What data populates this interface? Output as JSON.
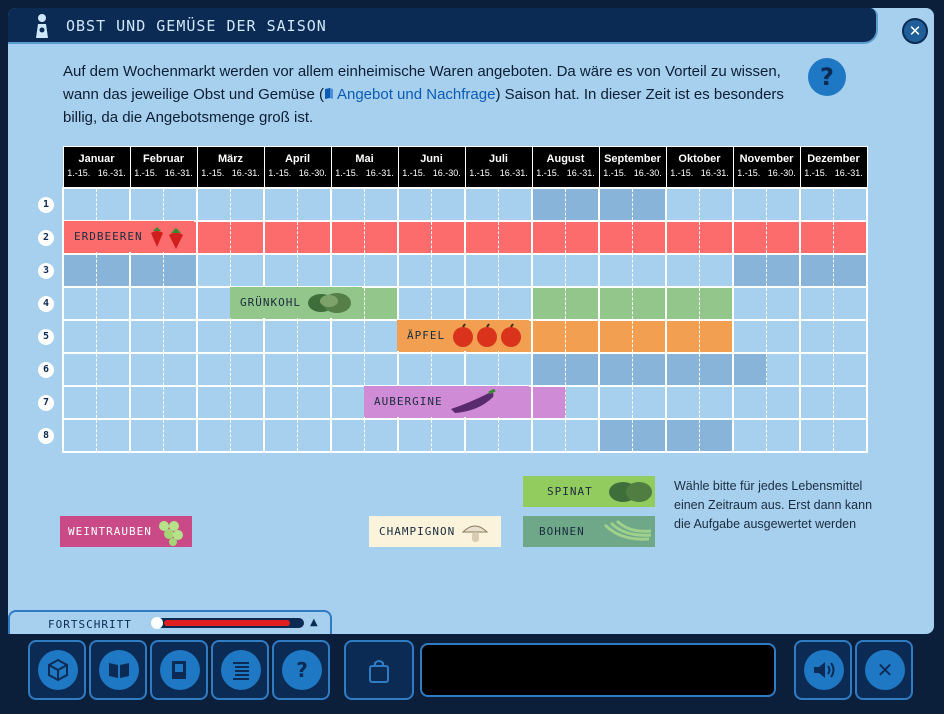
{
  "title": "OBST UND GEMÜSE DER SAISON",
  "intro": {
    "before": "Auf dem Wochenmarkt werden vor allem einheimische Waren angeboten. Da wäre es von Vorteil zu wissen, wann das jeweilige Obst und Gemüse (",
    "link": "Angebot und Nachfrage",
    "after": ") Saison hat. In dieser Zeit ist es besonders billig, da die Angebotsmenge groß ist."
  },
  "help": "?",
  "months": [
    "Januar",
    "Februar",
    "März",
    "April",
    "Mai",
    "Juni",
    "Juli",
    "August",
    "September",
    "Oktober",
    "November",
    "Dezember"
  ],
  "halves": [
    [
      "1.-15.",
      "16.-31."
    ],
    [
      "1.-15.",
      "16.-31."
    ],
    [
      "1.-15.",
      "16.-31."
    ],
    [
      "1.-15.",
      "16.-30."
    ],
    [
      "1.-15.",
      "16.-31."
    ],
    [
      "1.-15.",
      "16.-30."
    ],
    [
      "1.-15.",
      "16.-31."
    ],
    [
      "1.-15.",
      "16.-31."
    ],
    [
      "1.-15.",
      "16.-30."
    ],
    [
      "1.-15.",
      "16.-31."
    ],
    [
      "1.-15.",
      "16.-30."
    ],
    [
      "1.-15.",
      "16.-31."
    ]
  ],
  "row_numbers": [
    "1",
    "2",
    "3",
    "4",
    "5",
    "6",
    "7",
    "8"
  ],
  "placed_items": {
    "erdbeeren": "ERDBEEREN",
    "gruenkohl": "GRÜNKOHL",
    "aepfel": "ÄPFEL",
    "aubergine": "AUBERGINE"
  },
  "tray_items": {
    "spinat": "SPINAT",
    "bohnen": "BOHNEN",
    "weintrauben": "WEINTRAUBEN",
    "champignon": "CHAMPIGNON"
  },
  "instruction": "Wähle bitte für jedes Lebensmittel einen Zeitraum aus. Erst dann kann die Aufgabe ausgewertet werden",
  "progress": {
    "label": "FORTSCHRITT",
    "value": 0.93
  },
  "toolbar_help": "?",
  "close_symbol": "✕",
  "colors": {
    "red": "#fd6c6c",
    "green": "#93c68a",
    "orange": "#f29f52",
    "purple": "#d08bd6",
    "blue": "#88b4da"
  }
}
